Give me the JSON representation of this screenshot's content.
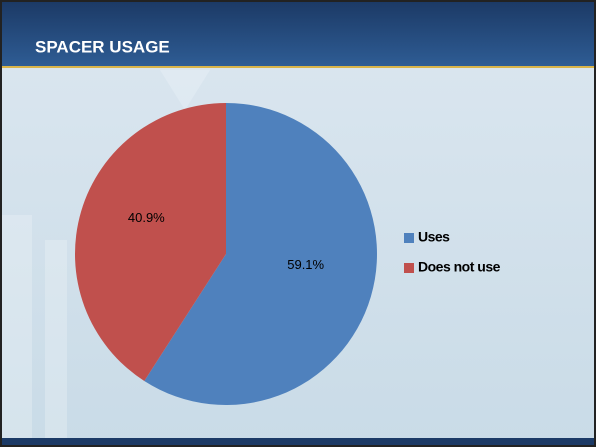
{
  "chart_data": {
    "type": "pie",
    "title": "SPACER USAGE",
    "categories": [
      "Uses",
      "Does not use"
    ],
    "values": [
      59.1,
      40.9
    ],
    "value_labels": [
      "59.1%",
      "40.9%"
    ],
    "colors": [
      "#4f81bd",
      "#c0504d"
    ],
    "legend": "right"
  }
}
